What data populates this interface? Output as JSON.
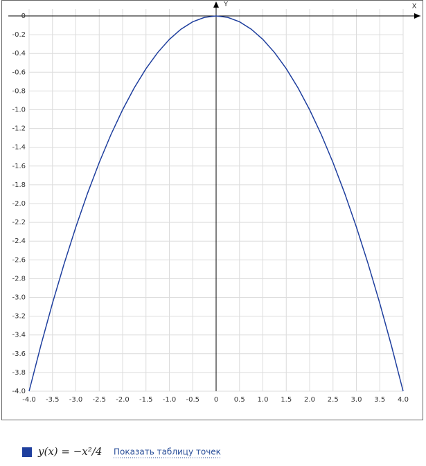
{
  "chart_data": {
    "type": "line",
    "x_label": "X",
    "y_label": "Y",
    "x": [
      -4,
      -3.75,
      -3.5,
      -3.25,
      -3,
      -2.75,
      -2.5,
      -2.25,
      -2,
      -1.75,
      -1.5,
      -1.25,
      -1,
      -0.75,
      -0.5,
      -0.25,
      0,
      0.25,
      0.5,
      0.75,
      1,
      1.25,
      1.5,
      1.75,
      2,
      2.25,
      2.5,
      2.75,
      3,
      3.25,
      3.5,
      3.75,
      4
    ],
    "series": [
      {
        "name": "y(x) = −x²/4",
        "color": "#1f3f9e",
        "values": [
          -4,
          -3.515625,
          -3.0625,
          -2.640625,
          -2.25,
          -1.890625,
          -1.5625,
          -1.265625,
          -1,
          -0.765625,
          -0.5625,
          -0.390625,
          -0.25,
          -0.140625,
          -0.0625,
          -0.015625,
          0,
          -0.015625,
          -0.0625,
          -0.140625,
          -0.25,
          -0.390625,
          -0.5625,
          -0.765625,
          -1,
          -1.265625,
          -1.5625,
          -1.890625,
          -2.25,
          -2.640625,
          -3.0625,
          -3.515625,
          -4
        ]
      }
    ],
    "xlim": [
      -4,
      4
    ],
    "ylim": [
      -4,
      0
    ],
    "xticks": [
      {
        "value": -4,
        "label": "-4.0"
      },
      -3.5,
      {
        "value": -3,
        "label": "-3.0"
      },
      -2.5,
      {
        "value": -2,
        "label": "-2.0"
      },
      -1.5,
      {
        "value": -1,
        "label": "-1.0"
      },
      -0.5,
      0,
      0.5,
      {
        "value": 1,
        "label": "1.0"
      },
      1.5,
      {
        "value": 2,
        "label": "2.0"
      },
      2.5,
      {
        "value": 3,
        "label": "3.0"
      },
      3.5,
      {
        "value": 4,
        "label": "4.0"
      }
    ],
    "yticks": [
      0,
      -0.2,
      -0.4,
      -0.6,
      -0.8,
      {
        "value": -1,
        "label": "-1.0"
      },
      -1.2,
      -1.4,
      -1.6,
      -1.8,
      {
        "value": -2,
        "label": "-2.0"
      },
      -2.2,
      -2.4,
      -2.6,
      -2.8,
      {
        "value": -3,
        "label": "-3.0"
      },
      -3.2,
      -3.4,
      -3.6,
      -3.8,
      {
        "value": -4,
        "label": "-4.0"
      }
    ],
    "grid": true,
    "link_text": "Показать таблицу точек"
  }
}
